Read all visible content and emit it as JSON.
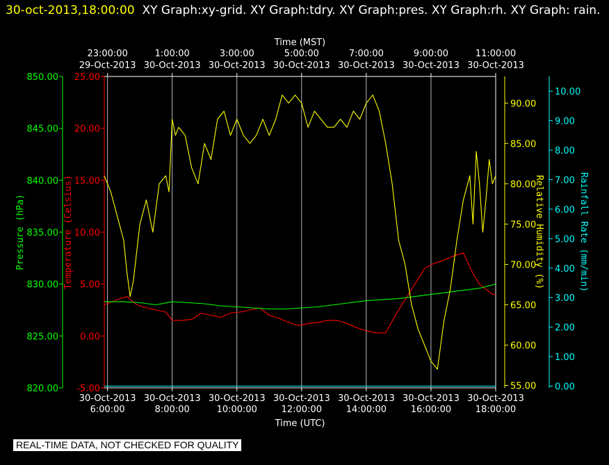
{
  "header": {
    "timestamp": "30-oct-2013,18:00:00",
    "graphs": "XY Graph:xy-grid.  XY Graph:tdry.  XY Graph:pres.  XY Graph:rh.  XY Graph: rain."
  },
  "notice": "REAL-TIME DATA, NOT CHECKED FOR QUALITY",
  "chart_data": {
    "type": "line",
    "grid": true,
    "top_axis": {
      "label": "Time (MST)",
      "ticks": [
        {
          "time": "23:00:00",
          "date": "29-Oct-2013",
          "x": 6
        },
        {
          "time": "1:00:00",
          "date": "30-Oct-2013",
          "x": 8
        },
        {
          "time": "3:00:00",
          "date": "30-Oct-2013",
          "x": 10
        },
        {
          "time": "5:00:00",
          "date": "30-Oct-2013",
          "x": 12
        },
        {
          "time": "7:00:00",
          "date": "30-Oct-2013",
          "x": 14
        },
        {
          "time": "9:00:00",
          "date": "30-Oct-2013",
          "x": 16
        },
        {
          "time": "11:00:00",
          "date": "30-Oct-2013",
          "x": 18
        }
      ]
    },
    "bottom_axis": {
      "label": "Time (UTC)",
      "xlim": [
        5.9,
        18.0
      ],
      "ticks": [
        {
          "time": "6:00:00",
          "date": "30-Oct-2013",
          "x": 6
        },
        {
          "time": "8:00:00",
          "date": "30-Oct-2013",
          "x": 8
        },
        {
          "time": "10:00:00",
          "date": "30-Oct-2013",
          "x": 10
        },
        {
          "time": "12:00:00",
          "date": "30-Oct-2013",
          "x": 12
        },
        {
          "time": "14:00:00",
          "date": "30-Oct-2013",
          "x": 14
        },
        {
          "time": "16:00:00",
          "date": "30-Oct-2013",
          "x": 16
        },
        {
          "time": "18:00:00",
          "date": "30-Oct-2013",
          "x": 18
        }
      ]
    },
    "axes": {
      "pressure": {
        "label": "Pressure (hPa)",
        "color": "#00ff00",
        "ylim": [
          820,
          850
        ],
        "ticks": [
          "820.00",
          "825.00",
          "830.00",
          "835.00",
          "840.00",
          "845.00",
          "850.00"
        ]
      },
      "temperature": {
        "label": "Temperature (Celsius)",
        "color": "#ff0000",
        "ylim": [
          -5,
          25
        ],
        "ticks": [
          "-5.00",
          "0.00",
          "5.00",
          "10.00",
          "15.00",
          "20.00",
          "25.00"
        ]
      },
      "humidity": {
        "label": "Relative Humidity (%)",
        "color": "#ffff00",
        "ylim": [
          54.7,
          93.3
        ],
        "ticks": [
          "55.00",
          "60.00",
          "65.00",
          "70.00",
          "75.00",
          "80.00",
          "85.00",
          "90.00"
        ]
      },
      "rain": {
        "label": "Rainfall Rate (mm/min)",
        "color": "#00ffff",
        "ylim": [
          -0.06,
          10.5
        ],
        "ticks": [
          "0.00",
          "1.00",
          "2.00",
          "3.00",
          "4.00",
          "5.00",
          "6.00",
          "7.00",
          "8.00",
          "9.00",
          "10.00"
        ]
      }
    },
    "series": [
      {
        "name": "tdry",
        "axis": "temperature",
        "color": "#ff0000",
        "x": [
          5.9,
          6.3,
          6.6,
          6.9,
          7.2,
          7.5,
          7.8,
          8.0,
          8.3,
          8.6,
          8.9,
          9.2,
          9.5,
          9.8,
          10.1,
          10.4,
          10.7,
          11.0,
          11.3,
          11.6,
          11.9,
          12.2,
          12.5,
          12.8,
          13.1,
          13.4,
          13.7,
          14.0,
          14.3,
          14.6,
          14.9,
          15.2,
          15.5,
          15.8,
          16.1,
          16.4,
          16.7,
          17.0,
          17.3,
          17.5,
          17.7,
          17.9,
          18.0
        ],
        "y": [
          3.0,
          3.5,
          3.8,
          3.0,
          2.7,
          2.5,
          2.3,
          1.5,
          1.5,
          1.6,
          2.2,
          2.0,
          1.8,
          2.2,
          2.3,
          2.5,
          2.7,
          2.0,
          1.7,
          1.3,
          1.0,
          1.2,
          1.3,
          1.5,
          1.5,
          1.2,
          0.8,
          0.5,
          0.3,
          0.3,
          2.0,
          3.5,
          5.0,
          6.5,
          7.0,
          7.3,
          7.7,
          8.0,
          6.0,
          5.0,
          4.5,
          4.0,
          4.0
        ]
      },
      {
        "name": "pres",
        "axis": "pressure",
        "color": "#00ff00",
        "x": [
          5.9,
          6.5,
          7.0,
          7.5,
          8.0,
          8.5,
          9.0,
          9.5,
          10.0,
          10.5,
          11.0,
          11.5,
          12.0,
          12.5,
          13.0,
          13.5,
          14.0,
          14.5,
          15.0,
          15.5,
          16.0,
          16.5,
          17.0,
          17.5,
          18.0
        ],
        "y": [
          828.3,
          828.3,
          828.2,
          828.0,
          828.3,
          828.2,
          828.1,
          827.9,
          827.8,
          827.7,
          827.6,
          827.6,
          827.7,
          827.8,
          828.0,
          828.2,
          828.4,
          828.5,
          828.6,
          828.8,
          829.0,
          829.2,
          829.4,
          829.6,
          830.0
        ]
      },
      {
        "name": "rh",
        "axis": "humidity",
        "color": "#ffff00",
        "x": [
          5.9,
          6.1,
          6.3,
          6.5,
          6.6,
          6.7,
          6.8,
          7.0,
          7.2,
          7.4,
          7.6,
          7.8,
          7.9,
          8.0,
          8.1,
          8.2,
          8.4,
          8.6,
          8.8,
          9.0,
          9.2,
          9.4,
          9.6,
          9.8,
          10.0,
          10.2,
          10.4,
          10.6,
          10.8,
          11.0,
          11.2,
          11.4,
          11.6,
          11.8,
          12.0,
          12.2,
          12.4,
          12.6,
          12.8,
          13.0,
          13.2,
          13.4,
          13.6,
          13.8,
          14.0,
          14.2,
          14.4,
          14.6,
          14.8,
          15.0,
          15.2,
          15.4,
          15.6,
          15.8,
          16.0,
          16.2,
          16.4,
          16.6,
          16.8,
          17.0,
          17.2,
          17.3,
          17.4,
          17.5,
          17.6,
          17.7,
          17.8,
          17.9,
          18.0
        ],
        "y": [
          81,
          79,
          76,
          73,
          69,
          66,
          68,
          75,
          78,
          74,
          80,
          81,
          79,
          88,
          86,
          87,
          86,
          82,
          80,
          85,
          83,
          88,
          89,
          86,
          88,
          86,
          85,
          86,
          88,
          86,
          88,
          91,
          90,
          91,
          90,
          87,
          89,
          88,
          87,
          87,
          88,
          87,
          89,
          88,
          90,
          91,
          89,
          85,
          80,
          73,
          70,
          65,
          62,
          60,
          58,
          57,
          63,
          67,
          73,
          78,
          81,
          75,
          84,
          80,
          74,
          78,
          83,
          80,
          81
        ]
      },
      {
        "name": "rain",
        "axis": "rain",
        "color": "#00ffff",
        "x": [
          5.9,
          18.0
        ],
        "y": [
          0.0,
          0.0
        ]
      }
    ]
  }
}
